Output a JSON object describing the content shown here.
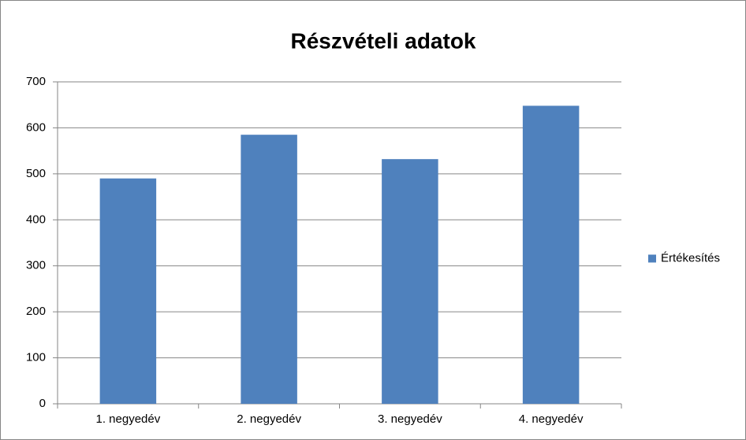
{
  "chart_data": {
    "type": "bar",
    "title": "Részvételi adatok",
    "categories": [
      "1. negyedév",
      "2. negyedév",
      "3. negyedév",
      "4. negyedév"
    ],
    "series": [
      {
        "name": "Értékesítés",
        "color": "#4f81bd",
        "values": [
          490,
          585,
          532,
          648
        ]
      }
    ],
    "ylim": [
      0,
      700
    ],
    "yticks": [
      0,
      100,
      200,
      300,
      400,
      500,
      600,
      700
    ],
    "grid": true,
    "legend": "right"
  }
}
